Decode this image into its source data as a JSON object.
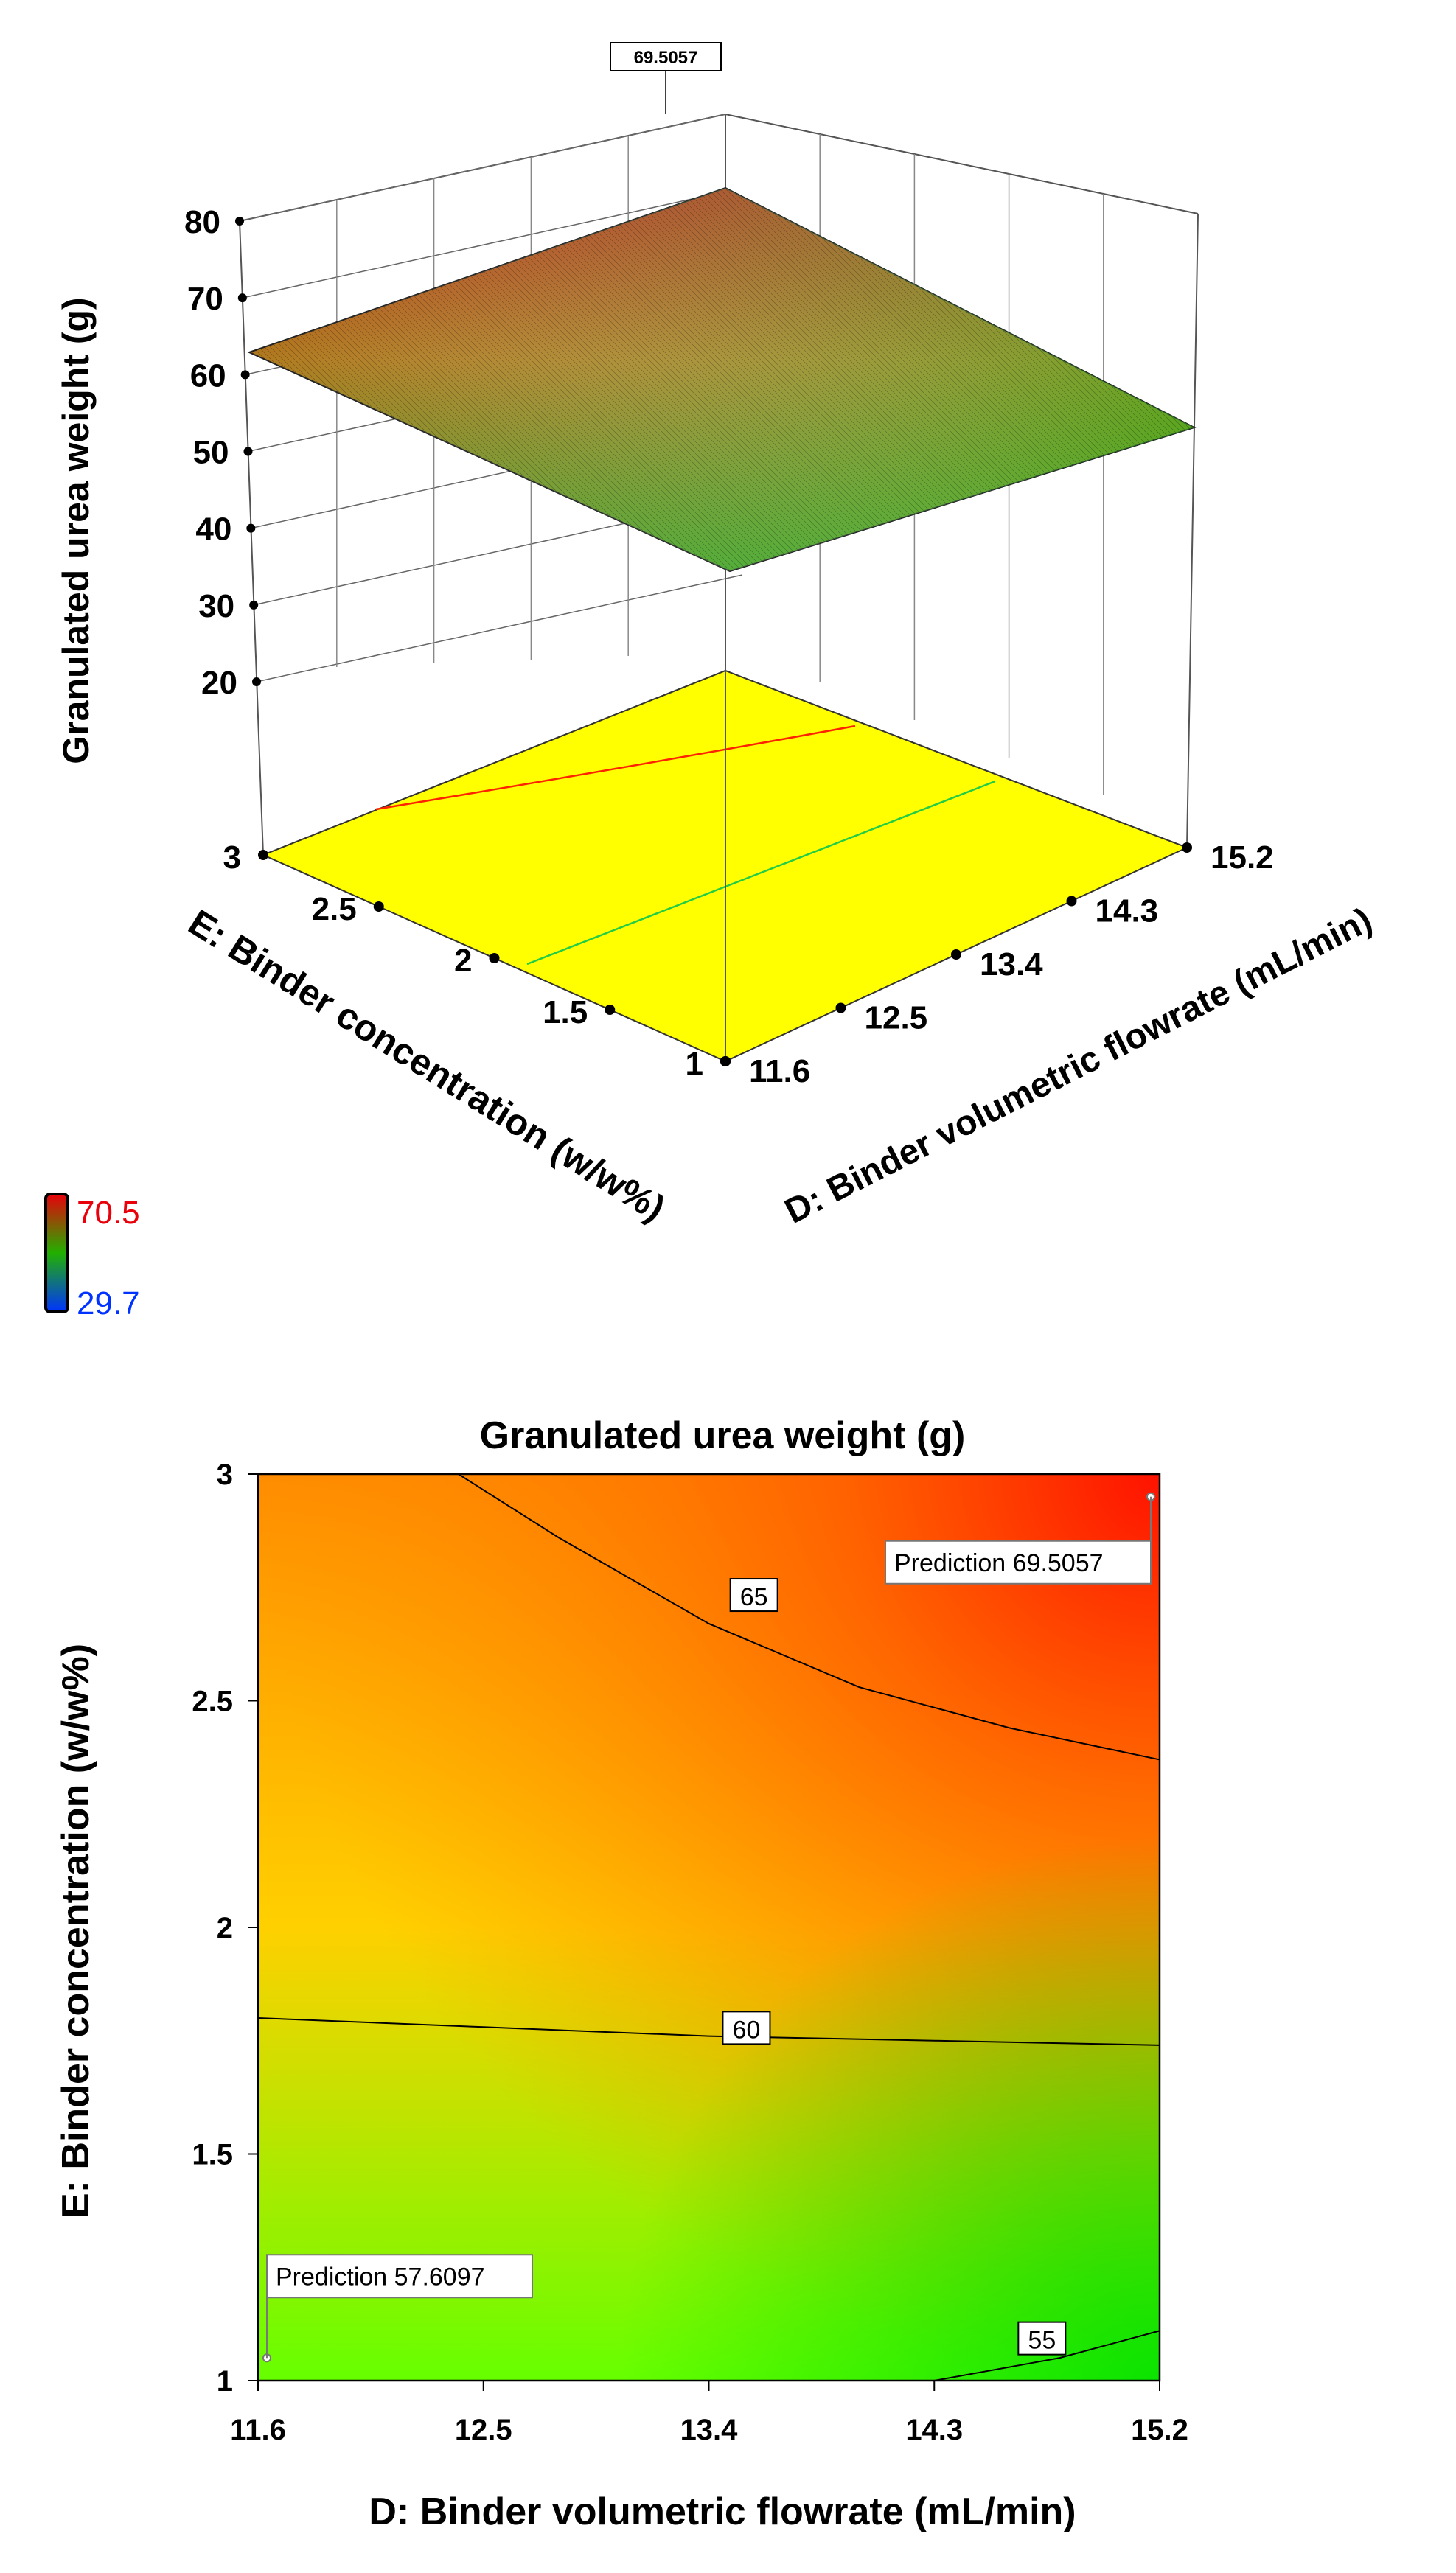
{
  "chart_data": [
    {
      "type": "surface",
      "title": "",
      "xlabel": "D: Binder volumetric flowrate (mL/min)",
      "ylabel": "E: Binder concentration (w/w%)",
      "zlabel": "Granulated urea weight (g)",
      "x_ticks": [
        "11.6",
        "12.5",
        "13.4",
        "14.3",
        "15.2"
      ],
      "y_ticks": [
        "1",
        "1.5",
        "2",
        "2.5",
        "3"
      ],
      "z_ticks": [
        "20",
        "30",
        "40",
        "50",
        "60",
        "70",
        "80"
      ],
      "xlim": [
        11.6,
        15.2
      ],
      "ylim": [
        1,
        3
      ],
      "zlim": [
        20,
        80
      ],
      "corner_values": {
        "D11.6_E1": 57.6097,
        "D15.2_E1": 53.8,
        "D11.6_E3": 60.2,
        "D15.2_E3": 69.5057
      },
      "max_label": "69.5057",
      "colorbar": {
        "max": "70.5",
        "min": "29.7",
        "max_color": "#e8000b",
        "min_color": "#0033ff"
      }
    },
    {
      "type": "contour",
      "title": "Granulated urea weight (g)",
      "xlabel": "D: Binder volumetric flowrate (mL/min)",
      "ylabel": "E: Binder concentration (w/w%)",
      "x_ticks": [
        "11.6",
        "12.5",
        "13.4",
        "14.3",
        "15.2"
      ],
      "y_ticks": [
        "1",
        "1.5",
        "2",
        "2.5",
        "3"
      ],
      "xlim": [
        11.6,
        15.2
      ],
      "ylim": [
        1,
        3
      ],
      "contour_levels": [
        {
          "label": "55",
          "points": [
            [
              14.3,
              1.0
            ],
            [
              14.8,
              1.05
            ],
            [
              15.2,
              1.11
            ]
          ],
          "label_at": [
            14.73,
            1.09
          ]
        },
        {
          "label": "60",
          "points": [
            [
              11.6,
              1.8
            ],
            [
              12.5,
              1.78
            ],
            [
              13.4,
              1.76
            ],
            [
              14.3,
              1.75
            ],
            [
              15.2,
              1.74
            ]
          ],
          "label_at": [
            13.55,
            1.775
          ]
        },
        {
          "label": "65",
          "points": [
            [
              12.4,
              3.0
            ],
            [
              12.8,
              2.86
            ],
            [
              13.4,
              2.67
            ],
            [
              14.0,
              2.53
            ],
            [
              14.6,
              2.44
            ],
            [
              15.2,
              2.37
            ]
          ],
          "label_at": [
            13.58,
            2.73
          ]
        }
      ],
      "predictions": [
        {
          "x": 15.2,
          "y": 2.95,
          "label": "Prediction",
          "value": "69.5057"
        },
        {
          "x": 11.6,
          "y": 1.05,
          "label": "Prediction",
          "value": "57.6097"
        }
      ]
    }
  ]
}
